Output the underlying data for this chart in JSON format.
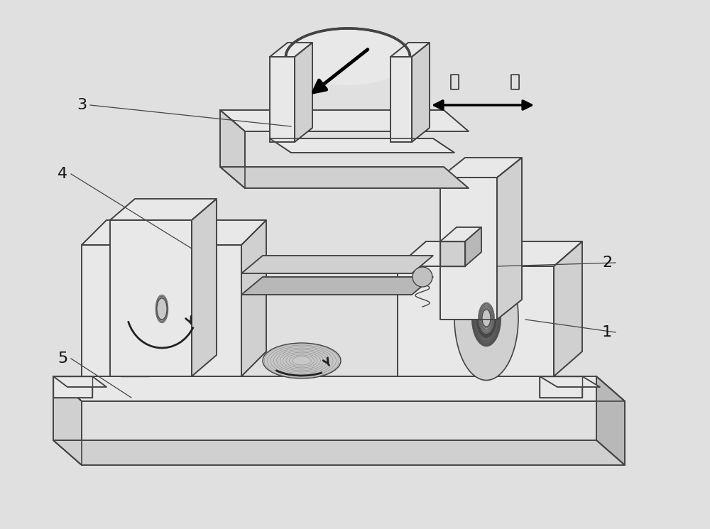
{
  "bg_color": "#e0e0e0",
  "device_color_light": "#e8e8e8",
  "device_color_mid": "#d0d0d0",
  "device_color_dark": "#b8b8b8",
  "device_color_coil": "#808080",
  "line_color": "#444444",
  "label_3": "3",
  "label_4": "4",
  "label_5": "5",
  "label_2": "2",
  "label_1": "1",
  "label_front": "前",
  "label_back": "后",
  "text_fontsize": 16,
  "chinese_fontsize": 18,
  "arrow_color": "#111111",
  "figsize": [
    10.0,
    7.45
  ],
  "dpi": 100
}
